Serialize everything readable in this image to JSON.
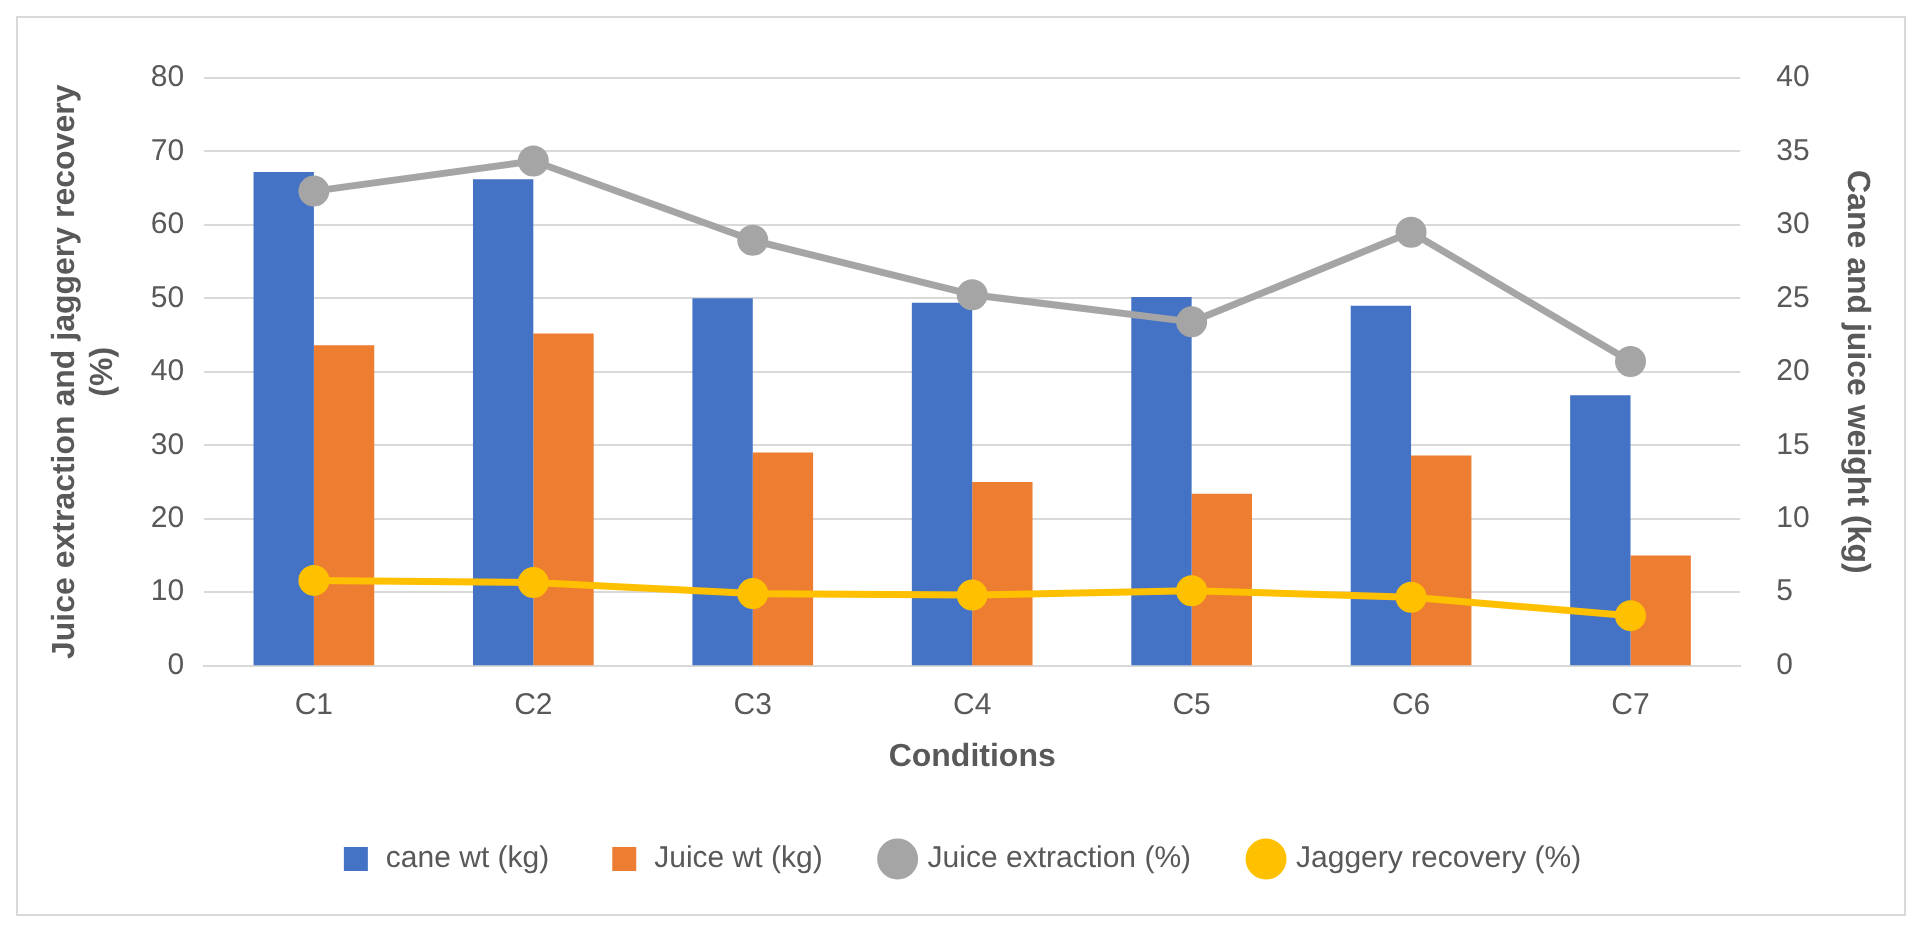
{
  "chart_data": {
    "type": "bar",
    "categories": [
      "C1",
      "C2",
      "C3",
      "C4",
      "C5",
      "C6",
      "C7"
    ],
    "xlabel": "Conditions",
    "ylabel": "Juice extraction and jaggery recovery\n(%)",
    "y2label": "Cane and juice weight (kg)",
    "series": [
      {
        "name": "cane wt (kg)",
        "axis": "y2",
        "color": "#4472c4",
        "values": [
          33.6,
          33.1,
          25.0,
          24.7,
          25.1,
          24.5,
          18.4
        ]
      },
      {
        "name": "Juice wt (kg)",
        "axis": "y2",
        "color": "#ed7d31",
        "values": [
          21.8,
          22.6,
          14.5,
          12.5,
          11.7,
          14.3,
          7.5
        ]
      },
      {
        "name": "Juice extraction (%)",
        "type": "line",
        "color": "#a5a5a5",
        "values": [
          64.6,
          68.7,
          57.9,
          50.5,
          46.8,
          59.0,
          41.4
        ]
      },
      {
        "name": "Jaggery recovery (%)",
        "type": "line",
        "color": "#ffc000",
        "values": [
          11.6,
          11.3,
          9.8,
          9.6,
          10.2,
          9.3,
          6.8
        ]
      }
    ],
    "ylim": [
      0,
      80
    ],
    "yticks": [
      0,
      10,
      20,
      30,
      40,
      50,
      60,
      70,
      80
    ],
    "y2lim": [
      0,
      40
    ],
    "y2ticks": [
      0,
      5,
      10,
      15,
      20,
      25,
      30,
      35,
      40
    ],
    "grid": "y",
    "legend": "bottom",
    "marker": "circle",
    "line_style": "solid"
  }
}
